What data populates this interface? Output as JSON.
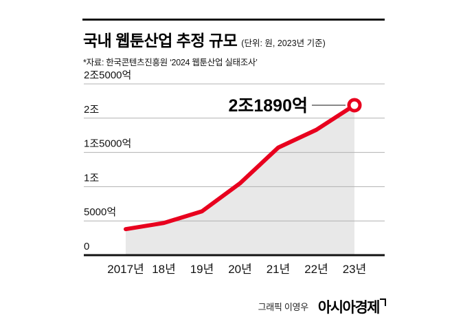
{
  "header": {
    "title": "국내 웹툰산업 추정 규모",
    "unit_note": "(단위: 원, 2023년 기준)",
    "source": "*자료: 한국콘텐츠진흥원 ‘2024 웹툰산업 실태조사’"
  },
  "chart_data": {
    "type": "area",
    "title": "국내 웹툰산업 추정 규모",
    "unit": "원 (억 단위 값)",
    "categories": [
      "2017년",
      "18년",
      "19년",
      "20년",
      "21년",
      "22년",
      "23년"
    ],
    "values_eok": [
      3800,
      4700,
      6400,
      10500,
      15700,
      18300,
      21890
    ],
    "ylim": [
      0,
      25000
    ],
    "y_ticks": [
      {
        "value": 0,
        "label": "0"
      },
      {
        "value": 5000,
        "label": "5000억"
      },
      {
        "value": 10000,
        "label": "1조"
      },
      {
        "value": 15000,
        "label": "1조5000억"
      },
      {
        "value": 20000,
        "label": "2조"
      },
      {
        "value": 25000,
        "label": "2조5000억"
      }
    ],
    "annotation": {
      "text": "2조1890억",
      "target_index": 6
    },
    "legend": "none",
    "grid": "horizontal",
    "colors": {
      "line": "#e8001e",
      "area": "#e8e8e8",
      "grid": "#b0b0b0",
      "axis": "#111111",
      "text": "#111111"
    }
  },
  "footer": {
    "credit": "그래픽 이영우",
    "brand": "아시아경제",
    "brand_mark_icon": "flag-icon"
  }
}
